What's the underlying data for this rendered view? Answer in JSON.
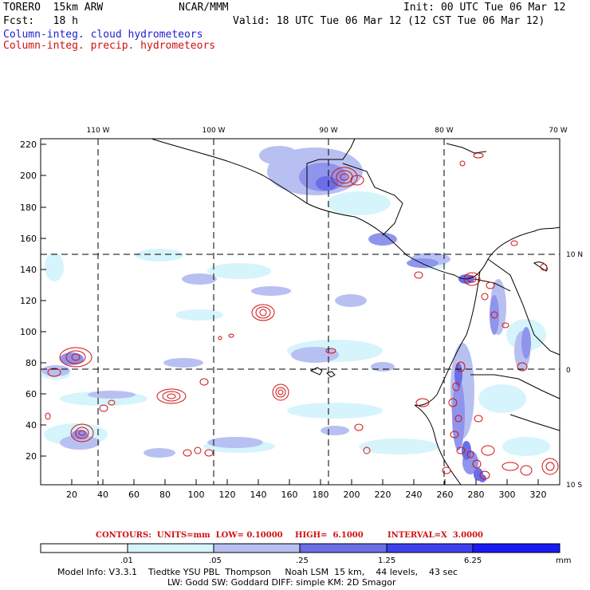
{
  "header": {
    "model": "TORERO  15km ARW",
    "org": "NCAR/MMM",
    "init": "Init: 00 UTC Tue 06 Mar 12",
    "fcst": "Fcst:   18 h",
    "valid": "Valid: 18 UTC Tue 06 Mar 12 (12 CST Tue 06 Mar 12)",
    "field_cloud": "Column-integ. cloud hydrometeors",
    "field_precip": "Column-integ. precip. hydrometeors"
  },
  "colors": {
    "cloud_text": "#2020d0",
    "precip_text": "#d01010",
    "shade1": "#d6f4fb",
    "shade2": "#b8c0f2",
    "shade3": "#8f94ec",
    "shade4": "#6a6ee8",
    "shade5": "#3d3ff0",
    "shade6": "#1a1af5"
  },
  "map": {
    "lon_labels": [
      "110 W",
      "100 W",
      "90 W",
      "80 W",
      "70 W"
    ],
    "lat_labels": [
      "10 N",
      "0",
      "10 S"
    ],
    "y_ticks": [
      "220",
      "200",
      "180",
      "160",
      "140",
      "120",
      "100",
      "80",
      "60",
      "40",
      "20"
    ],
    "x_ticks": [
      "20",
      "40",
      "60",
      "80",
      "100",
      "120",
      "140",
      "160",
      "180",
      "200",
      "220",
      "240",
      "260",
      "280",
      "300",
      "320"
    ]
  },
  "contours": {
    "units": "CONTOURS:  UNITS=mm  LOW= 0.10000",
    "high": "HIGH=  6.1000",
    "interval": "INTERVAL=X  3.0000"
  },
  "colorbar": {
    "labels": [
      ".01",
      ".05",
      ".25",
      "1.25",
      "6.25"
    ],
    "unit": "mm"
  },
  "model_info": {
    "line1": "Model Info: V3.3.1    Tiedtke YSU PBL  Thompson     Noah LSM  15 km,    44 levels,    43 sec",
    "line2": "LW: Godd SW: Goddard DIFF: simple KM: 2D Smagor"
  }
}
